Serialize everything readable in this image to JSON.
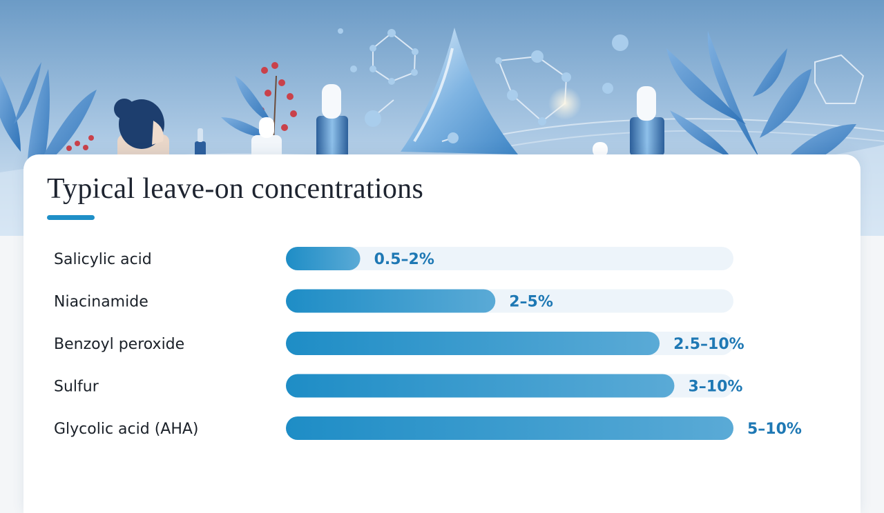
{
  "colors": {
    "bar_start": "#1e8dc6",
    "bar_end": "#5aaad6",
    "track": "#edf4fa",
    "value_text": "#1e78b4",
    "accent": "#1f8fc7"
  },
  "chart_data": {
    "type": "bar",
    "orientation": "horizontal",
    "title": "Typical leave-on concentrations",
    "categories": [
      "Salicylic acid",
      "Niacinamide",
      "Benzoyl peroxide",
      "Sulfur",
      "Glycolic acid (AHA)"
    ],
    "value_labels": [
      "0.5–2%",
      "2–5%",
      "2.5–10%",
      "3–10%",
      "5–10%"
    ],
    "values": [
      2,
      5,
      10,
      10,
      10
    ],
    "fill_fraction": [
      0.166,
      0.468,
      0.835,
      0.868,
      1.0
    ],
    "xlim": [
      0,
      10
    ],
    "grid": false,
    "legend": "none"
  }
}
